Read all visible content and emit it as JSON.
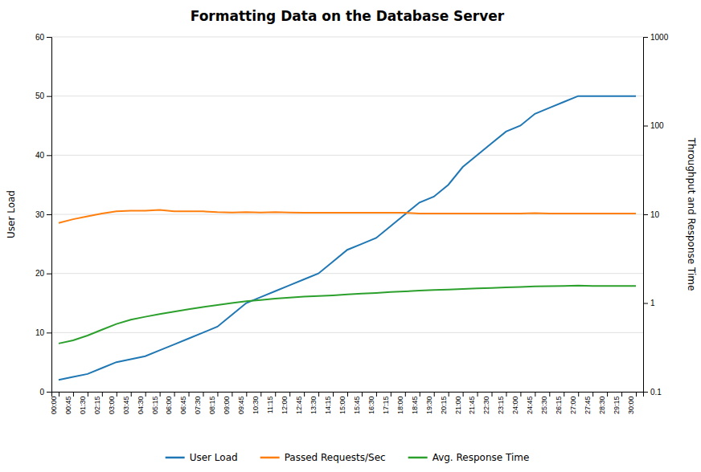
{
  "chart_data": {
    "type": "line",
    "title": "Formatting Data on the Database Server",
    "ylabel": "User Load",
    "y2label": "Throughput and Response Time",
    "categories": [
      "00:00",
      "00:45",
      "01:30",
      "02:15",
      "03:00",
      "03:45",
      "04:30",
      "05:15",
      "06:00",
      "06:45",
      "07:30",
      "08:15",
      "09:00",
      "09:45",
      "10:30",
      "11:15",
      "12:00",
      "12:45",
      "13:30",
      "14:15",
      "15:00",
      "15:45",
      "16:30",
      "17:15",
      "18:00",
      "18:45",
      "19:30",
      "20:15",
      "21:00",
      "21:45",
      "22:30",
      "23:15",
      "24:00",
      "24:45",
      "25:30",
      "26:15",
      "27:00",
      "27:45",
      "28:30",
      "29:15",
      "30:00"
    ],
    "series": [
      {
        "name": "User Load",
        "values": [
          2,
          2.5,
          3,
          4,
          5,
          5.5,
          6,
          7,
          8,
          9,
          10,
          11,
          13,
          15,
          16,
          17,
          18,
          19,
          20,
          22,
          24,
          25,
          26,
          28,
          30,
          32,
          33,
          35,
          38,
          40,
          42,
          44,
          45,
          47,
          48,
          49,
          50,
          50,
          50,
          50,
          50
        ]
      },
      {
        "name": "Passed Requests/Sec",
        "axis": "y2",
        "values": [
          8.0,
          8.8,
          9.5,
          10.2,
          10.8,
          11.0,
          11.0,
          11.2,
          10.8,
          10.8,
          10.8,
          10.6,
          10.5,
          10.6,
          10.5,
          10.6,
          10.5,
          10.4,
          10.4,
          10.4,
          10.4,
          10.4,
          10.4,
          10.4,
          10.4,
          10.2,
          10.2,
          10.2,
          10.2,
          10.2,
          10.2,
          10.2,
          10.2,
          10.3,
          10.2,
          10.2,
          10.2,
          10.2,
          10.2,
          10.2,
          10.2
        ]
      },
      {
        "name": "Avg. Response Time",
        "axis": "y2",
        "values": [
          0.35,
          0.38,
          0.43,
          0.5,
          0.58,
          0.65,
          0.7,
          0.75,
          0.8,
          0.85,
          0.9,
          0.95,
          1.0,
          1.05,
          1.08,
          1.12,
          1.15,
          1.18,
          1.2,
          1.22,
          1.25,
          1.28,
          1.3,
          1.33,
          1.35,
          1.38,
          1.4,
          1.42,
          1.44,
          1.46,
          1.48,
          1.5,
          1.52,
          1.54,
          1.55,
          1.56,
          1.57,
          1.56,
          1.56,
          1.56,
          1.56
        ]
      }
    ],
    "ylim": [
      0,
      60
    ],
    "yticks": [
      0,
      10,
      20,
      30,
      40,
      50,
      60
    ],
    "y2lim": [
      0.1,
      1000
    ],
    "y2ticks": [
      0.1,
      1,
      10,
      100,
      1000
    ],
    "log": "y2",
    "grid": true,
    "legend": "bottom"
  }
}
